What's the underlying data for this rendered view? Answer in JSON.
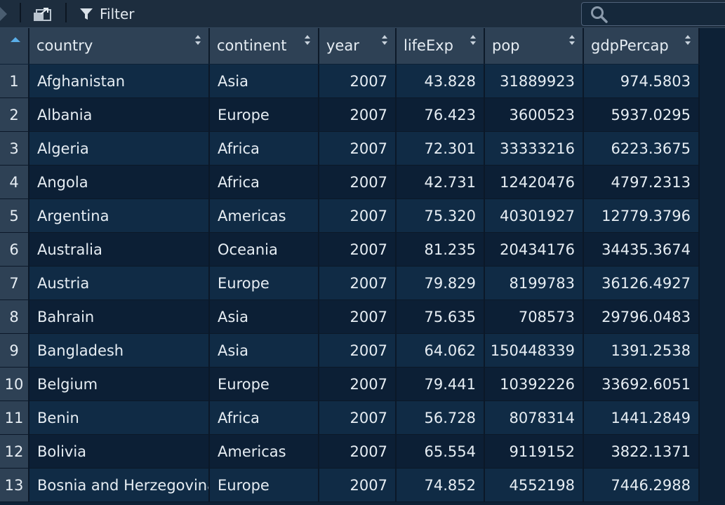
{
  "toolbar": {
    "filter_label": "Filter",
    "search_placeholder": "",
    "icons": [
      "forward-arrow-icon",
      "popout-icon",
      "filter-icon",
      "search-icon"
    ]
  },
  "colors": {
    "toolbar_bg": "#1d2d3e",
    "header_bg": "#2e4155",
    "row_odd": "#102b45",
    "row_even": "#0c1f35",
    "sort_active": "#5aaee8"
  },
  "table": {
    "columns": [
      "country",
      "continent",
      "year",
      "lifeExp",
      "pop",
      "gdpPercap"
    ],
    "rows": [
      {
        "n": "1",
        "country": "Afghanistan",
        "continent": "Asia",
        "year": "2007",
        "lifeExp": "43.828",
        "pop": "31889923",
        "gdpPercap": "974.5803"
      },
      {
        "n": "2",
        "country": "Albania",
        "continent": "Europe",
        "year": "2007",
        "lifeExp": "76.423",
        "pop": "3600523",
        "gdpPercap": "5937.0295"
      },
      {
        "n": "3",
        "country": "Algeria",
        "continent": "Africa",
        "year": "2007",
        "lifeExp": "72.301",
        "pop": "33333216",
        "gdpPercap": "6223.3675"
      },
      {
        "n": "4",
        "country": "Angola",
        "continent": "Africa",
        "year": "2007",
        "lifeExp": "42.731",
        "pop": "12420476",
        "gdpPercap": "4797.2313"
      },
      {
        "n": "5",
        "country": "Argentina",
        "continent": "Americas",
        "year": "2007",
        "lifeExp": "75.320",
        "pop": "40301927",
        "gdpPercap": "12779.3796"
      },
      {
        "n": "6",
        "country": "Australia",
        "continent": "Oceania",
        "year": "2007",
        "lifeExp": "81.235",
        "pop": "20434176",
        "gdpPercap": "34435.3674"
      },
      {
        "n": "7",
        "country": "Austria",
        "continent": "Europe",
        "year": "2007",
        "lifeExp": "79.829",
        "pop": "8199783",
        "gdpPercap": "36126.4927"
      },
      {
        "n": "8",
        "country": "Bahrain",
        "continent": "Asia",
        "year": "2007",
        "lifeExp": "75.635",
        "pop": "708573",
        "gdpPercap": "29796.0483"
      },
      {
        "n": "9",
        "country": "Bangladesh",
        "continent": "Asia",
        "year": "2007",
        "lifeExp": "64.062",
        "pop": "150448339",
        "gdpPercap": "1391.2538"
      },
      {
        "n": "10",
        "country": "Belgium",
        "continent": "Europe",
        "year": "2007",
        "lifeExp": "79.441",
        "pop": "10392226",
        "gdpPercap": "33692.6051"
      },
      {
        "n": "11",
        "country": "Benin",
        "continent": "Africa",
        "year": "2007",
        "lifeExp": "56.728",
        "pop": "8078314",
        "gdpPercap": "1441.2849"
      },
      {
        "n": "12",
        "country": "Bolivia",
        "continent": "Americas",
        "year": "2007",
        "lifeExp": "65.554",
        "pop": "9119152",
        "gdpPercap": "3822.1371"
      },
      {
        "n": "13",
        "country": "Bosnia and Herzegovina",
        "continent": "Europe",
        "year": "2007",
        "lifeExp": "74.852",
        "pop": "4552198",
        "gdpPercap": "7446.2988"
      }
    ]
  }
}
